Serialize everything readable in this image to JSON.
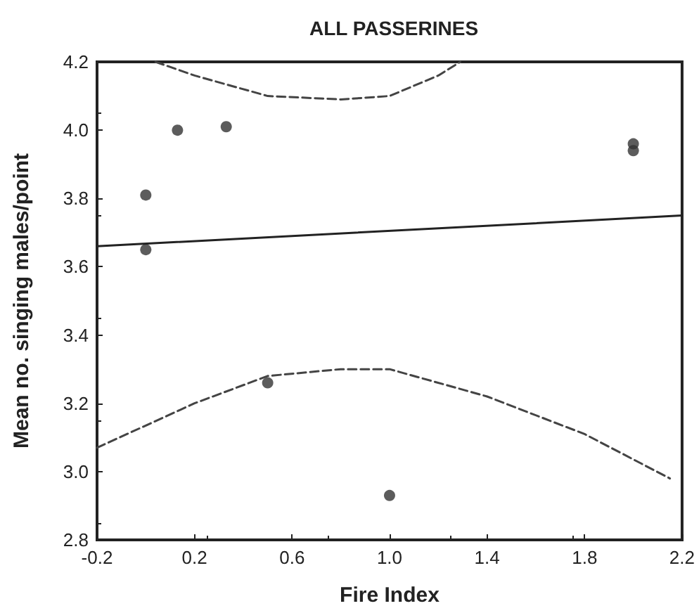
{
  "chart_data": {
    "type": "scatter",
    "title": "ALL PASSERINES",
    "xlabel": "Fire Index",
    "ylabel": "Mean no. singing males/point",
    "xlim": [
      -0.2,
      2.2
    ],
    "xticks": [
      -0.2,
      0.2,
      0.6,
      {
        "value": 1,
        "label": "1.0"
      },
      1.4,
      1.8,
      2.2
    ],
    "ylim": [
      2.8,
      4.2
    ],
    "yticks": [
      2.8,
      {
        "value": 3,
        "label": "3.0"
      },
      3.2,
      3.4,
      3.6,
      3.8,
      {
        "value": 4,
        "label": "4.0"
      },
      4.2
    ],
    "grid": false,
    "marker": "circle",
    "series": [
      {
        "color": "#333333",
        "x": [
          0,
          0,
          0.13,
          0.33,
          0.5,
          1.0,
          2.0,
          2.0
        ],
        "values": [
          3.81,
          3.65,
          4.0,
          4.01,
          3.26,
          2.93,
          3.96,
          3.94
        ]
      },
      {
        "type": "line",
        "color": "#222222",
        "line_style": "solid",
        "marker": "none",
        "x": [
          -0.2,
          2.2
        ],
        "values": [
          3.66,
          3.75
        ]
      },
      {
        "type": "line",
        "color": "#444444",
        "line_style": "dashed",
        "marker": "none",
        "x": [
          -0.2,
          0.2,
          0.5,
          0.8,
          1.0,
          1.4,
          1.8,
          2.15
        ],
        "values": [
          3.07,
          3.2,
          3.28,
          3.3,
          3.3,
          3.22,
          3.11,
          2.98
        ]
      },
      {
        "type": "line",
        "color": "#444444",
        "line_style": "dashed",
        "marker": "none",
        "x": [
          0.04,
          0.2,
          0.5,
          0.8,
          1.0,
          1.2,
          1.29
        ],
        "values": [
          4.2,
          4.16,
          4.1,
          4.09,
          4.1,
          4.16,
          4.2
        ]
      }
    ]
  }
}
